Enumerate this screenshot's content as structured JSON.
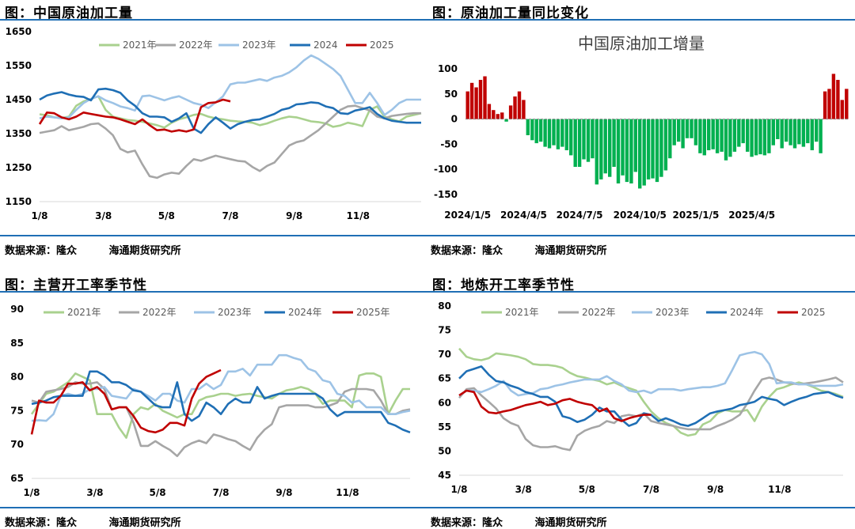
{
  "panels": [
    {
      "title": "图：中国原油加工量",
      "source_label": "数据来源：隆众",
      "institute": "海通期货研究所"
    },
    {
      "title": "图：原油加工量同比变化",
      "source_label": "数据来源：隆众",
      "institute": "海通期货研究所"
    },
    {
      "title": "图：主营开工率季节性",
      "source_label": "数据来源：隆众",
      "institute": "海通期货研究所"
    },
    {
      "title": "图：地炼开工率季节性",
      "source_label": "数据来源：隆众",
      "institute": "海通期货研究所"
    }
  ],
  "colors": {
    "y2021": "#a9d18e",
    "y2022": "#a6a6a6",
    "y2023": "#9dc3e6",
    "y2024": "#1f6fb5",
    "y2025": "#c00000",
    "pos_bar": "#c00000",
    "neg_bar": "#00b050",
    "rule": "#1f6fb5"
  },
  "chart_data": [
    {
      "id": "crude_runs",
      "type": "line",
      "title": "中国原油加工量",
      "xlabel": "",
      "ylabel": "",
      "ylim": [
        1150,
        1650
      ],
      "yticks": [
        1150,
        1250,
        1350,
        1450,
        1550,
        1650
      ],
      "xrange": [
        1,
        53
      ],
      "xticks": [
        {
          "x": 1,
          "label": "1/8"
        },
        {
          "x": 9.7,
          "label": "3/8"
        },
        {
          "x": 18.3,
          "label": "5/8"
        },
        {
          "x": 27,
          "label": "7/8"
        },
        {
          "x": 35.7,
          "label": "9/8"
        },
        {
          "x": 44.4,
          "label": "11/8"
        }
      ],
      "legend_position": "top",
      "series": [
        {
          "name": "2021年",
          "color_key": "y2021",
          "values": [
            1407,
            1404,
            1398,
            1396,
            1400,
            1432,
            1445,
            1452,
            1460,
            1420,
            1400,
            1395,
            1390,
            1388,
            1385,
            1380,
            1375,
            1368,
            1382,
            1392,
            1398,
            1405,
            1408,
            1400,
            1395,
            1392,
            1388,
            1386,
            1385,
            1382,
            1375,
            1380,
            1388,
            1395,
            1400,
            1398,
            1392,
            1386,
            1384,
            1380,
            1370,
            1374,
            1382,
            1378,
            1372,
            1420,
            1430,
            1400,
            1392,
            1386,
            1400,
            1405,
            1410
          ]
        },
        {
          "name": "2022年",
          "color_key": "y2022",
          "values": [
            1352,
            1356,
            1360,
            1372,
            1360,
            1365,
            1370,
            1378,
            1380,
            1365,
            1345,
            1305,
            1295,
            1300,
            1260,
            1225,
            1220,
            1230,
            1235,
            1232,
            1255,
            1275,
            1270,
            1278,
            1285,
            1280,
            1275,
            1270,
            1268,
            1252,
            1240,
            1255,
            1265,
            1290,
            1315,
            1325,
            1330,
            1345,
            1360,
            1380,
            1400,
            1420,
            1430,
            1432,
            1425,
            1418,
            1400,
            1395,
            1402,
            1405,
            1408,
            1410,
            1410
          ]
        },
        {
          "name": "2023年",
          "color_key": "y2023",
          "values": [
            1395,
            1400,
            1398,
            1395,
            1398,
            1420,
            1440,
            1452,
            1460,
            1448,
            1440,
            1430,
            1425,
            1418,
            1460,
            1462,
            1455,
            1448,
            1455,
            1460,
            1450,
            1440,
            1435,
            1425,
            1442,
            1460,
            1495,
            1500,
            1500,
            1505,
            1510,
            1505,
            1515,
            1520,
            1530,
            1545,
            1565,
            1580,
            1570,
            1555,
            1540,
            1520,
            1480,
            1440,
            1440,
            1470,
            1440,
            1405,
            1420,
            1440,
            1450,
            1450,
            1450
          ]
        },
        {
          "name": "2024",
          "color_key": "y2024",
          "values": [
            1450,
            1462,
            1468,
            1472,
            1465,
            1460,
            1458,
            1448,
            1480,
            1482,
            1478,
            1470,
            1448,
            1432,
            1410,
            1400,
            1400,
            1398,
            1385,
            1395,
            1410,
            1365,
            1352,
            1378,
            1398,
            1382,
            1365,
            1378,
            1385,
            1390,
            1392,
            1400,
            1408,
            1420,
            1425,
            1436,
            1438,
            1442,
            1440,
            1430,
            1425,
            1410,
            1408,
            1418,
            1422,
            1428,
            1408,
            1395,
            1388,
            1385,
            1382,
            1382,
            1382
          ]
        },
        {
          "name": "2025",
          "color_key": "y2025",
          "values": [
            1378,
            1412,
            1410,
            1398,
            1392,
            1400,
            1412,
            1408,
            1404,
            1400,
            1398,
            1392,
            1385,
            1378,
            1392,
            1375,
            1360,
            1362,
            1356,
            1360,
            1356,
            1362,
            1428,
            1440,
            1442,
            1450,
            1445
          ]
        }
      ]
    },
    {
      "id": "yoy_change",
      "type": "bar",
      "title": "中国原油加工增量",
      "xlabel": "",
      "ylabel": "",
      "ylim": [
        -150,
        100
      ],
      "yticks": [
        -150,
        -100,
        -50,
        0,
        50,
        100
      ],
      "xticks": [
        {
          "i": 0,
          "label": "2024/1/5"
        },
        {
          "i": 13,
          "label": "2024/4/5"
        },
        {
          "i": 26,
          "label": "2024/7/5"
        },
        {
          "i": 40,
          "label": "2024/10/5"
        },
        {
          "i": 53,
          "label": "2025/1/5"
        },
        {
          "i": 66,
          "label": "2025/4/5"
        }
      ],
      "baseline_dashed": true,
      "values": [
        55,
        72,
        63,
        78,
        85,
        30,
        18,
        10,
        13,
        -5,
        27,
        45,
        55,
        38,
        -32,
        -42,
        -48,
        -45,
        -55,
        -58,
        -52,
        -60,
        -55,
        -62,
        -72,
        -95,
        -95,
        -80,
        -85,
        -78,
        -130,
        -120,
        -108,
        -115,
        -95,
        -128,
        -112,
        -125,
        -128,
        -105,
        -138,
        -132,
        -120,
        -118,
        -125,
        -115,
        -102,
        -78,
        -52,
        -45,
        -58,
        -38,
        -38,
        -52,
        -68,
        -72,
        -62,
        -60,
        -68,
        -65,
        -82,
        -75,
        -65,
        -55,
        -48,
        -65,
        -75,
        -72,
        -70,
        -72,
        -68,
        -52,
        -40,
        -58,
        -45,
        -52,
        -58,
        -50,
        -55,
        -48,
        -62,
        -45,
        -68,
        55,
        60,
        90,
        78,
        38,
        60
      ]
    },
    {
      "id": "major_util",
      "type": "line",
      "title": "主营开工率季节性",
      "xlabel": "",
      "ylabel": "",
      "ylim": [
        65,
        90
      ],
      "yticks": [
        65,
        70,
        75,
        80,
        85,
        90
      ],
      "xrange": [
        1,
        53
      ],
      "xticks": [
        {
          "x": 1,
          "label": "1/8"
        },
        {
          "x": 9.7,
          "label": "3/8"
        },
        {
          "x": 18.3,
          "label": "5/8"
        },
        {
          "x": 27,
          "label": "7/8"
        },
        {
          "x": 35.7,
          "label": "9/8"
        },
        {
          "x": 44.4,
          "label": "11/8"
        }
      ],
      "legend_position": "top",
      "series": [
        {
          "name": "2021年",
          "color_key": "y2021",
          "values": [
            74.5,
            76,
            77.5,
            77.8,
            78.5,
            79.2,
            80.5,
            80,
            79.5,
            74.5,
            74.5,
            74.5,
            72.5,
            71,
            74.5,
            75.5,
            75.2,
            76,
            75,
            74.5,
            74,
            74.5,
            74.5,
            76.5,
            77,
            77.2,
            77.5,
            77.5,
            77.2,
            77.4,
            77.5,
            77.2,
            77,
            76.8,
            77.5,
            78,
            78.2,
            78.5,
            78.2,
            77.5,
            76,
            76.5,
            76.5,
            76.5,
            75.5,
            80.2,
            80.5,
            80.5,
            80,
            74.5,
            76.5,
            78.2,
            78.2
          ]
        },
        {
          "name": "2022年",
          "color_key": "y2022",
          "values": [
            76.5,
            76.2,
            77.8,
            78,
            78.2,
            78.5,
            79.2,
            79,
            79,
            79.2,
            78.2,
            75.2,
            75.5,
            75.5,
            73.2,
            69.8,
            69.8,
            70.5,
            69.8,
            69.2,
            68.3,
            69.6,
            70.2,
            70.6,
            70.2,
            71.5,
            71.2,
            70.8,
            70.5,
            69.8,
            69.2,
            71,
            72.2,
            73,
            75.5,
            75.8,
            75.8,
            75.8,
            75.8,
            75.5,
            75.5,
            75.8,
            76.2,
            77.8,
            78.2,
            78.2,
            78.2,
            78,
            76.5,
            74.5,
            74.5,
            75,
            75.2
          ]
        },
        {
          "name": "2023年",
          "color_key": "y2023",
          "values": [
            73.5,
            73.6,
            73.5,
            74.5,
            77.2,
            77.5,
            77.2,
            77.5,
            78.2,
            78.2,
            78.5,
            77.2,
            77,
            76.8,
            78.2,
            77.8,
            77.2,
            76.5,
            77.5,
            77.5,
            76.5,
            76.2,
            78.2,
            78.2,
            79,
            78.2,
            78.8,
            80.8,
            80.8,
            81.2,
            80.2,
            81.8,
            81.8,
            81.8,
            83.2,
            83.2,
            82.8,
            82.5,
            81.2,
            80.8,
            79.5,
            79.2,
            77.5,
            77.2,
            76.2,
            76.5,
            75.5,
            75.5,
            75.5,
            74.5,
            74.5,
            74.8,
            75
          ]
        },
        {
          "name": "2024年",
          "color_key": "y2024",
          "values": [
            76,
            76.2,
            76.5,
            77,
            77.2,
            77.2,
            77.2,
            77.2,
            80.8,
            80.8,
            80.2,
            79.2,
            79.2,
            78.8,
            78,
            77.8,
            76.8,
            75.8,
            75.5,
            75.5,
            79.2,
            74.5,
            73.5,
            74.2,
            76.2,
            75.5,
            74.5,
            76,
            76.8,
            76.2,
            76.2,
            78.5,
            76.8,
            77.2,
            77.5,
            77.5,
            77.5,
            77.5,
            77.5,
            77.5,
            76.8,
            75.2,
            74.2,
            74.8,
            74.8,
            74.8,
            74.8,
            74.8,
            74.8,
            73.2,
            72.8,
            72.2,
            71.8
          ]
        },
        {
          "name": "2025年",
          "color_key": "y2025",
          "values": [
            71.5,
            76.5,
            76.2,
            76.2,
            77.2,
            79,
            79,
            79.2,
            78,
            78.5,
            77.5,
            75.2,
            75.5,
            75.5,
            74.2,
            72.5,
            72,
            71.8,
            72.2,
            73.2,
            73.2,
            72.8,
            76.8,
            79,
            80,
            80.5,
            81
          ]
        }
      ]
    },
    {
      "id": "teapot_util",
      "type": "line",
      "title": "地炼开工率季节性",
      "xlabel": "",
      "ylabel": "",
      "ylim": [
        45,
        80
      ],
      "yticks": [
        45,
        50,
        55,
        60,
        65,
        70,
        75,
        80
      ],
      "xrange": [
        1,
        53
      ],
      "xticks": [
        {
          "x": 1,
          "label": "1/8"
        },
        {
          "x": 9.7,
          "label": "3/8"
        },
        {
          "x": 18.3,
          "label": "5/8"
        },
        {
          "x": 27,
          "label": "7/8"
        },
        {
          "x": 35.7,
          "label": "9/8"
        },
        {
          "x": 44.4,
          "label": "11/8"
        }
      ],
      "legend_position": "top",
      "series": [
        {
          "name": "2021年",
          "color_key": "y2021",
          "values": [
            71.2,
            69.5,
            69,
            68.8,
            69.2,
            70.2,
            70,
            69.8,
            69.5,
            69,
            68,
            67.8,
            67.8,
            67.6,
            67.2,
            66.2,
            65.5,
            65.2,
            64.8,
            64.5,
            63.8,
            64.2,
            63.5,
            63,
            62.5,
            60.2,
            58.2,
            56.8,
            55.8,
            55.2,
            53.8,
            53.2,
            53.5,
            55.5,
            56.2,
            57.8,
            58.5,
            58.2,
            58.2,
            58.5,
            56.2,
            59.2,
            61.2,
            62.8,
            63.2,
            63.8,
            64.2,
            63.8,
            63.2,
            62.5,
            62.2,
            61.8,
            61.2
          ]
        },
        {
          "name": "2022年",
          "color_key": "y2022",
          "values": [
            61,
            62.8,
            63,
            61.5,
            60.2,
            58.8,
            56.8,
            55.8,
            55.2,
            52.5,
            51.2,
            50.8,
            50.8,
            51,
            50.5,
            50.2,
            53.2,
            54.2,
            54.8,
            55.2,
            56.2,
            55.8,
            57.2,
            57.5,
            57.2,
            57.8,
            56.2,
            55.8,
            55.5,
            55.2,
            54.8,
            54.5,
            54.5,
            54.5,
            54.5,
            55.2,
            55.8,
            56.5,
            57.5,
            59.8,
            62.5,
            64.8,
            65.2,
            64.8,
            64.2,
            64,
            63.8,
            64,
            64.2,
            64.5,
            64.8,
            65.2,
            64.2
          ]
        },
        {
          "name": "2023年",
          "color_key": "y2023",
          "values": [
            61.5,
            62.5,
            62.5,
            62.2,
            62.8,
            63.5,
            64.5,
            62.5,
            61.5,
            61.8,
            62,
            62.8,
            63,
            63.5,
            63.8,
            64.2,
            64.5,
            64.8,
            64.8,
            64.8,
            65.5,
            64.5,
            63.8,
            62.5,
            62.2,
            62.5,
            62,
            62.8,
            62.8,
            62.8,
            62.5,
            62.8,
            63,
            63.2,
            63.2,
            63.5,
            64,
            66.8,
            69.8,
            70.2,
            70.5,
            70,
            68,
            64,
            64.2,
            64.2,
            63.8,
            63.8,
            63.5,
            63.5,
            63.5,
            63.5,
            63.8
          ]
        },
        {
          "name": "2024年",
          "color_key": "y2024",
          "values": [
            65,
            66.5,
            67,
            67.5,
            65.8,
            64.5,
            64.2,
            63.5,
            63,
            62.2,
            61.8,
            61.2,
            61.2,
            60.2,
            57.2,
            56.8,
            56,
            56.5,
            57.5,
            59,
            58.2,
            58.2,
            56.5,
            55.2,
            55.8,
            57.8,
            57.5,
            56.2,
            56.8,
            56.2,
            55.5,
            55.2,
            55.8,
            56.8,
            57.8,
            58.2,
            58.5,
            58.8,
            59.5,
            59.8,
            60.2,
            61.2,
            60.8,
            60.5,
            59.5,
            60.2,
            60.8,
            61.2,
            61.8,
            62,
            62.2,
            61.5,
            61
          ]
        },
        {
          "name": "2025",
          "color_key": "y2025",
          "values": [
            61.5,
            62.5,
            62.2,
            59.2,
            58,
            57.8,
            58.2,
            58.5,
            59,
            59.5,
            59.8,
            60.2,
            59.5,
            59.8,
            60.5,
            60.8,
            60.2,
            59.8,
            59.5,
            58.2,
            58.8,
            56.8,
            56.2,
            56.8,
            57.2,
            57.5,
            57.5
          ]
        }
      ]
    }
  ]
}
